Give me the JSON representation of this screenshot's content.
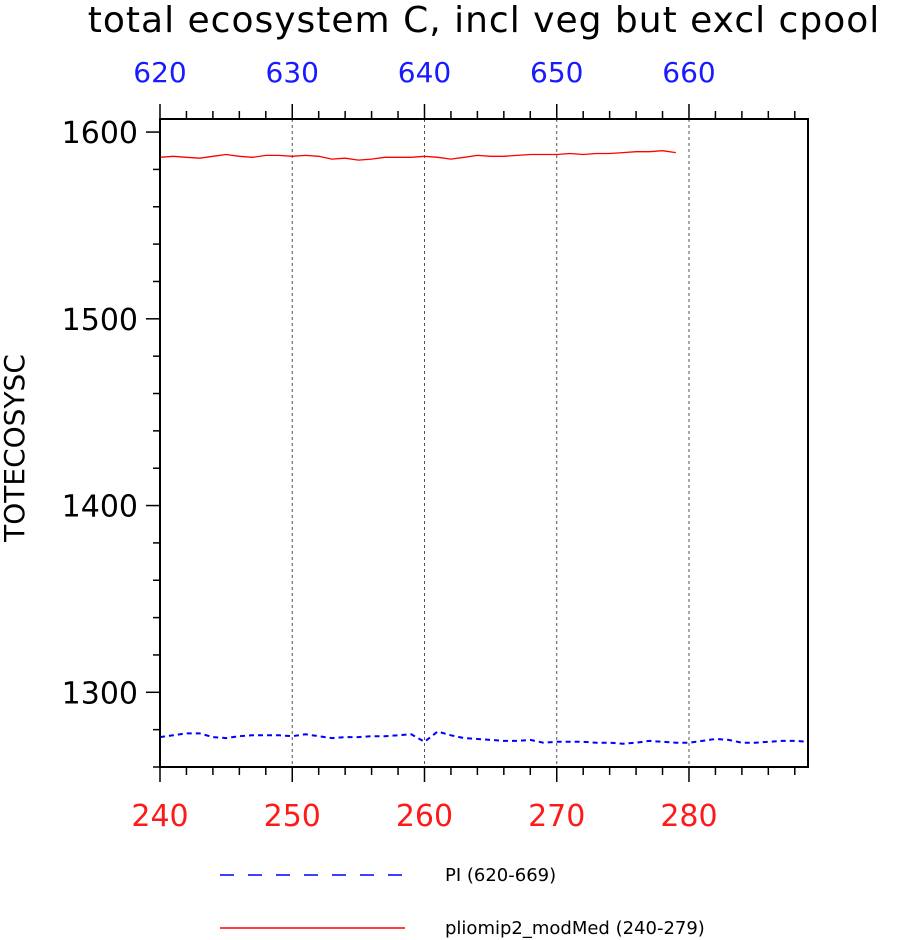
{
  "chart_data": {
    "type": "line",
    "title": "total ecosystem C, incl veg but excl cpool",
    "ylabel": "TOTECOSYSC",
    "xlabel": "",
    "xlim": [
      240,
      289
    ],
    "ylim": [
      1260,
      1607
    ],
    "top_xlim": [
      620,
      669
    ],
    "yticks": [
      1300,
      1400,
      1500,
      1600
    ],
    "xticks_bottom": [
      240,
      250,
      260,
      270,
      280
    ],
    "xticks_top": [
      620,
      630,
      640,
      650,
      660
    ],
    "grid_x": [
      250,
      260,
      270,
      280
    ],
    "series": [
      {
        "name": "PI (620-669)",
        "color": "#0000ff",
        "style": "dashed",
        "x": [
          240,
          241,
          242,
          243,
          244,
          245,
          246,
          247,
          248,
          249,
          250,
          251,
          252,
          253,
          254,
          255,
          256,
          257,
          258,
          259,
          260,
          261,
          262,
          263,
          264,
          265,
          266,
          267,
          268,
          269,
          270,
          271,
          272,
          273,
          274,
          275,
          276,
          277,
          278,
          279,
          280,
          281,
          282,
          283,
          284,
          285,
          286,
          287,
          288,
          289
        ],
        "values": [
          1276,
          1277,
          1278,
          1278,
          1276,
          1275.5,
          1276.5,
          1277,
          1277,
          1277,
          1276.5,
          1277.5,
          1276.5,
          1275.5,
          1276,
          1276,
          1276.5,
          1276.5,
          1277,
          1277.5,
          1273.5,
          1279,
          1277,
          1275.5,
          1275,
          1274.5,
          1274,
          1274,
          1274.5,
          1273,
          1273.5,
          1273.5,
          1273.5,
          1273,
          1273,
          1272.5,
          1273,
          1274,
          1273.5,
          1273,
          1273,
          1274,
          1275,
          1274.5,
          1273,
          1273,
          1273.5,
          1274,
          1274,
          1273.5
        ]
      },
      {
        "name": "pliomip2_modMed (240-279)",
        "color": "#ff0000",
        "style": "solid",
        "x": [
          240,
          241,
          242,
          243,
          244,
          245,
          246,
          247,
          248,
          249,
          250,
          251,
          252,
          253,
          254,
          255,
          256,
          257,
          258,
          259,
          260,
          261,
          262,
          263,
          264,
          265,
          266,
          267,
          268,
          269,
          270,
          271,
          272,
          273,
          274,
          275,
          276,
          277,
          278,
          279
        ],
        "values": [
          1586.5,
          1587,
          1586.5,
          1586,
          1587,
          1588,
          1587,
          1586.5,
          1587.5,
          1587.5,
          1587,
          1587.5,
          1587,
          1585.5,
          1586,
          1585,
          1585.5,
          1586.5,
          1586.5,
          1586.5,
          1587,
          1586.5,
          1585.5,
          1586.5,
          1587.5,
          1587,
          1587,
          1587.5,
          1588,
          1588,
          1588,
          1588.5,
          1588,
          1588.5,
          1588.5,
          1589,
          1589.5,
          1589.5,
          1590,
          1589
        ]
      }
    ]
  }
}
